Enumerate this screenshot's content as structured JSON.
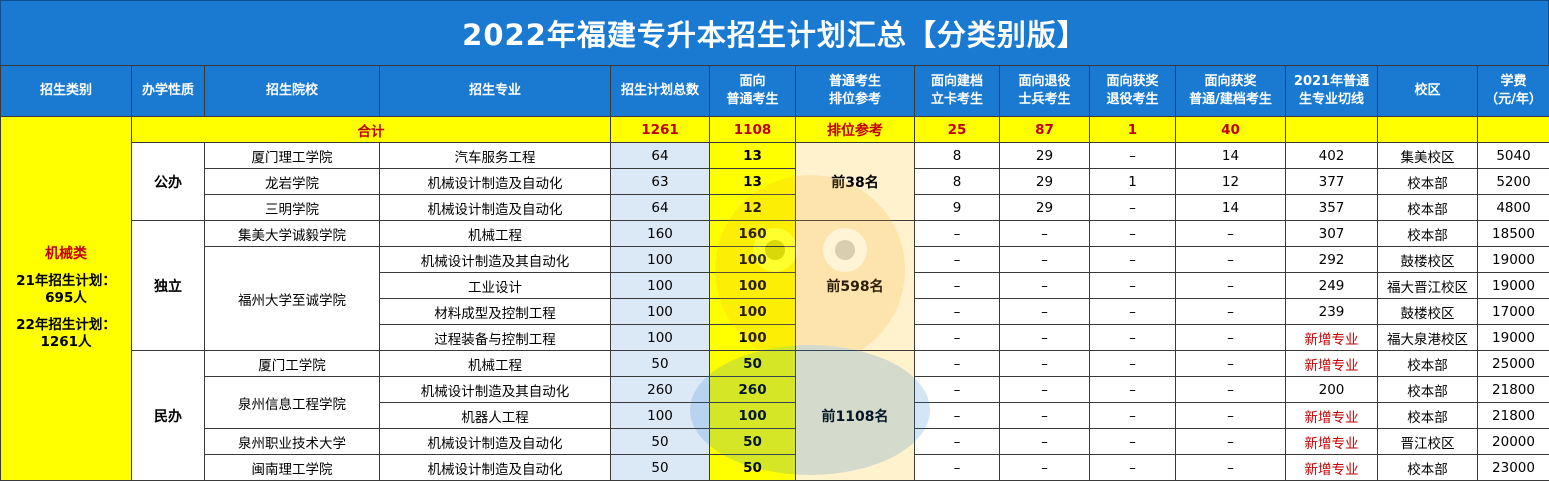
{
  "title": "2022年福建专升本招生计划汇总【分类别版】",
  "headers": [
    "招生类别",
    "办学性质",
    "招生院校",
    "招生专业",
    "招生计划总数",
    "面向\n普通考生",
    "普通考生\n排位参考",
    "面向建档\n立卡考生",
    "面向退役\n士兵考生",
    "面向获奖\n退役考生",
    "面向获奖\n普通/建档考生",
    "2021年普通\n生专业切线",
    "校区",
    "学费\n（元/年）"
  ],
  "category": {
    "name": "机械类",
    "plan21": "21年招生计划：\n695人",
    "plan22": "22年招生计划：\n1261人"
  },
  "summary": {
    "label": "合计",
    "total": "1261",
    "normal": "1108",
    "rank": "排位参考",
    "card": "25",
    "veteran": "87",
    "award_vet": "1",
    "award_normal": "40"
  },
  "natures": {
    "public": "公办",
    "independent": "独立",
    "private": "民办"
  },
  "ranks": {
    "public": "前38名",
    "independent": "前598名",
    "private": "前1108名"
  },
  "rows": [
    {
      "school": "厦门理工学院",
      "major": "汽车服务工程",
      "total": "64",
      "normal": "13",
      "card": "8",
      "veteran": "29",
      "award_vet": "–",
      "award_normal": "14",
      "cut": "402",
      "campus": "集美校区",
      "fee": "5040"
    },
    {
      "school": "龙岩学院",
      "major": "机械设计制造及自动化",
      "total": "63",
      "normal": "13",
      "card": "8",
      "veteran": "29",
      "award_vet": "1",
      "award_normal": "12",
      "cut": "377",
      "campus": "校本部",
      "fee": "5200"
    },
    {
      "school": "三明学院",
      "major": "机械设计制造及自动化",
      "total": "64",
      "normal": "12",
      "card": "9",
      "veteran": "29",
      "award_vet": "–",
      "award_normal": "14",
      "cut": "357",
      "campus": "校本部",
      "fee": "4800"
    },
    {
      "school": "集美大学诚毅学院",
      "major": "机械工程",
      "total": "160",
      "normal": "160",
      "card": "–",
      "veteran": "–",
      "award_vet": "–",
      "award_normal": "–",
      "cut": "307",
      "campus": "校本部",
      "fee": "18500"
    },
    {
      "school": "福州大学至诚学院",
      "major": "机械设计制造及其自动化",
      "total": "100",
      "normal": "100",
      "card": "–",
      "veteran": "–",
      "award_vet": "–",
      "award_normal": "–",
      "cut": "292",
      "campus": "鼓楼校区",
      "fee": "19000"
    },
    {
      "school": "",
      "major": "工业设计",
      "total": "100",
      "normal": "100",
      "card": "–",
      "veteran": "–",
      "award_vet": "–",
      "award_normal": "–",
      "cut": "249",
      "campus": "福大晋江校区",
      "fee": "19000"
    },
    {
      "school": "",
      "major": "材料成型及控制工程",
      "total": "100",
      "normal": "100",
      "card": "–",
      "veteran": "–",
      "award_vet": "–",
      "award_normal": "–",
      "cut": "239",
      "campus": "鼓楼校区",
      "fee": "17000"
    },
    {
      "school": "",
      "major": "过程装备与控制工程",
      "total": "100",
      "normal": "100",
      "card": "–",
      "veteran": "–",
      "award_vet": "–",
      "award_normal": "–",
      "cut": "新增专业",
      "campus": "福大泉港校区",
      "fee": "19000"
    },
    {
      "school": "厦门工学院",
      "major": "机械工程",
      "total": "50",
      "normal": "50",
      "card": "–",
      "veteran": "–",
      "award_vet": "–",
      "award_normal": "–",
      "cut": "新增专业",
      "campus": "校本部",
      "fee": "25000"
    },
    {
      "school": "泉州信息工程学院",
      "major": "机械设计制造及其自动化",
      "total": "260",
      "normal": "260",
      "card": "–",
      "veteran": "–",
      "award_vet": "–",
      "award_normal": "–",
      "cut": "200",
      "campus": "校本部",
      "fee": "21800"
    },
    {
      "school": "",
      "major": "机器人工程",
      "total": "100",
      "normal": "100",
      "card": "–",
      "veteran": "–",
      "award_vet": "–",
      "award_normal": "–",
      "cut": "新增专业",
      "campus": "校本部",
      "fee": "21800"
    },
    {
      "school": "泉州职业技术大学",
      "major": "机械设计制造及自动化",
      "total": "50",
      "normal": "50",
      "card": "–",
      "veteran": "–",
      "award_vet": "–",
      "award_normal": "–",
      "cut": "新增专业",
      "campus": "晋江校区",
      "fee": "20000"
    },
    {
      "school": "闽南理工学院",
      "major": "机械设计制造及自动化",
      "total": "50",
      "normal": "50",
      "card": "–",
      "veteran": "–",
      "award_vet": "–",
      "award_normal": "–",
      "cut": "新增专业",
      "campus": "校本部",
      "fee": "23000"
    }
  ],
  "colors": {
    "header_bg": "#1a7ad2",
    "summary_bg": "#ffff00",
    "summary_text": "#c00000",
    "normal_col": "#ffff00",
    "new_major": "#c00000"
  }
}
